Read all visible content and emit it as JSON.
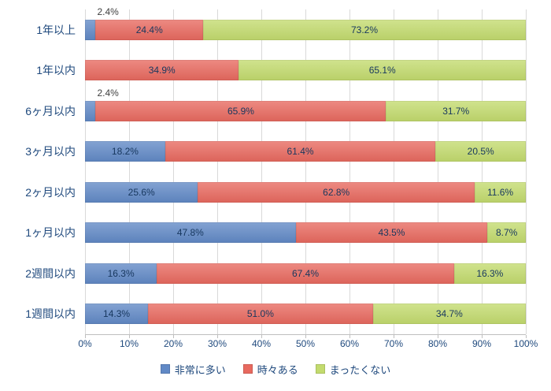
{
  "chart_data": {
    "type": "bar",
    "orientation": "horizontal",
    "stacked": true,
    "stack_total": 100,
    "title": "",
    "categories": [
      "1年以上",
      "1年以内",
      "6ヶ月以内",
      "3ヶ月以内",
      "2ヶ月以内",
      "1ヶ月以内",
      "2週間以内",
      "1週間以内"
    ],
    "series": [
      {
        "name": "非常に多い",
        "color": "#6189C6",
        "values": [
          2.4,
          0,
          2.4,
          18.2,
          25.6,
          47.8,
          16.3,
          14.3
        ]
      },
      {
        "name": "時々ある",
        "color": "#E8695F",
        "values": [
          24.4,
          34.9,
          65.9,
          61.4,
          62.8,
          43.5,
          67.4,
          51.0
        ]
      },
      {
        "name": "まったくない",
        "color": "#C3DB6E",
        "values": [
          73.2,
          65.1,
          31.7,
          20.5,
          11.6,
          8.7,
          16.3,
          34.7
        ]
      }
    ],
    "xlim": [
      0,
      100
    ],
    "x_ticks": [
      "0%",
      "10%",
      "20%",
      "30%",
      "40%",
      "50%",
      "60%",
      "70%",
      "80%",
      "90%",
      "100%"
    ],
    "grid": true,
    "gridline_color": "#D9D9D9",
    "legend_position": "bottom",
    "label_format": "one_decimal_percent",
    "small_segment_threshold_pct": 5,
    "colors": {
      "category_label": "#1F497D",
      "axis_label": "#1F497D",
      "data_label_inside": "#17375E",
      "data_label_outside": "#3F3F3F"
    }
  }
}
